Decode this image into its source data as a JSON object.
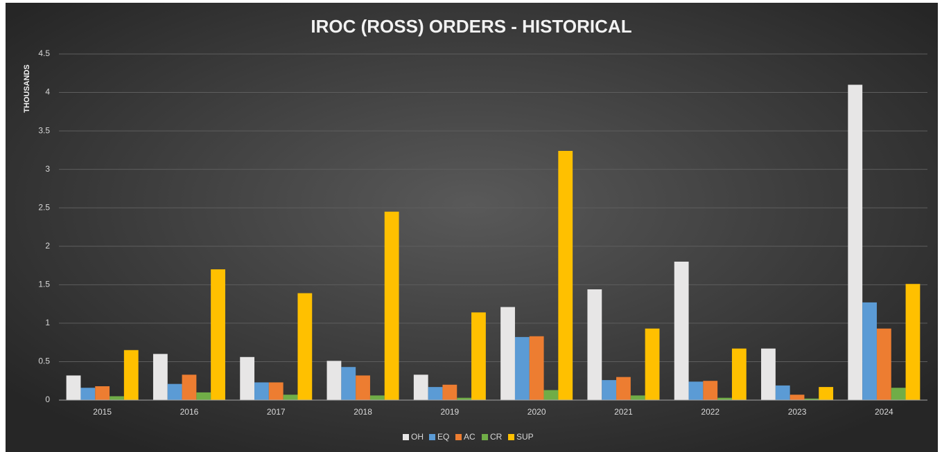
{
  "chart_data": {
    "type": "bar",
    "title": "IROC (ROSS) ORDERS - HISTORICAL",
    "y_label": "THOUSANDS",
    "categories": [
      "2015",
      "2016",
      "2017",
      "2018",
      "2019",
      "2020",
      "2021",
      "2022",
      "2023",
      "2024"
    ],
    "series": [
      {
        "name": "OH",
        "color": "#e7e6e6",
        "values": [
          0.32,
          0.6,
          0.56,
          0.51,
          0.33,
          1.21,
          1.44,
          1.8,
          0.67,
          4.1
        ]
      },
      {
        "name": "EQ",
        "color": "#5b9bd5",
        "values": [
          0.16,
          0.21,
          0.23,
          0.43,
          0.17,
          0.82,
          0.26,
          0.24,
          0.19,
          1.27
        ]
      },
      {
        "name": "AC",
        "color": "#ed7d31",
        "values": [
          0.18,
          0.33,
          0.23,
          0.32,
          0.2,
          0.83,
          0.3,
          0.25,
          0.07,
          0.93
        ]
      },
      {
        "name": "CR",
        "color": "#70ad47",
        "values": [
          0.05,
          0.1,
          0.07,
          0.06,
          0.03,
          0.13,
          0.06,
          0.03,
          0.02,
          0.16
        ]
      },
      {
        "name": "SUP",
        "color": "#ffc000",
        "values": [
          0.65,
          1.7,
          1.39,
          2.45,
          1.14,
          3.24,
          0.93,
          0.67,
          0.17,
          1.51
        ]
      }
    ],
    "ylim": [
      0,
      4.5
    ],
    "yticks": [
      0,
      0.5,
      1,
      1.5,
      2,
      2.5,
      3,
      3.5,
      4,
      4.5
    ],
    "grid": true,
    "legend": "bottom"
  }
}
